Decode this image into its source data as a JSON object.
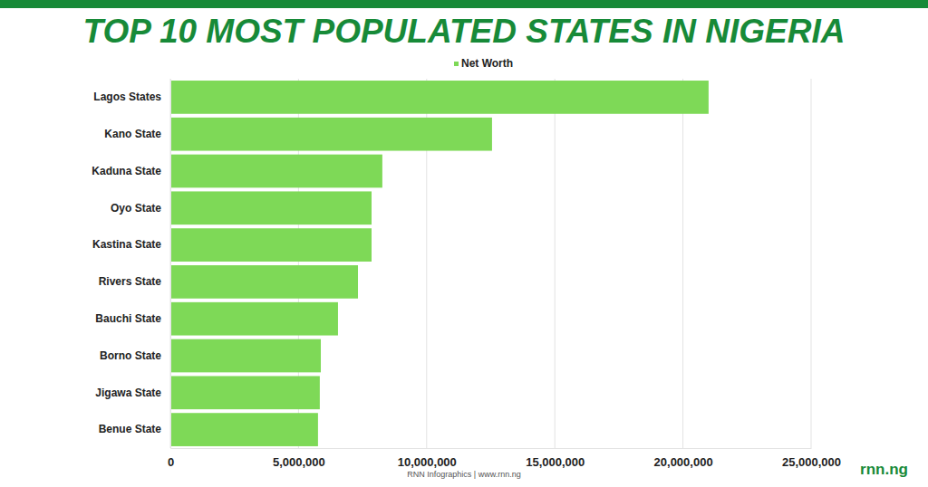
{
  "chart_data": {
    "type": "bar",
    "title": "TOP 10 MOST POPULATED STATES IN NIGERIA",
    "orientation": "horizontal",
    "categories": [
      "Lagos States",
      "Kano State",
      "Kaduna State",
      "Oyo State",
      "Kastina State",
      "Rivers State",
      "Bauchi State",
      "Borno State",
      "Jigawa State",
      "Benue State"
    ],
    "series": [
      {
        "name": "Net Worth",
        "color": "#7ed957",
        "values": [
          21000000,
          12550000,
          8270000,
          7850000,
          7850000,
          7320000,
          6540000,
          5870000,
          5830000,
          5760000
        ]
      }
    ],
    "xlim": [
      0,
      25000000
    ],
    "xticks": [
      0,
      {
        "value": 5000000,
        "label": "5,000,000"
      },
      {
        "value": 10000000,
        "label": "10,000,000"
      },
      {
        "value": 15000000,
        "label": "15,000,000"
      },
      {
        "value": 20000000,
        "label": "20,000,000"
      },
      {
        "value": 25000000,
        "label": "25,000,000"
      }
    ],
    "grid": true,
    "legend": "top",
    "annotations": [
      "RNN Infographics | www.rnn.ng",
      "rnn.ng"
    ]
  }
}
